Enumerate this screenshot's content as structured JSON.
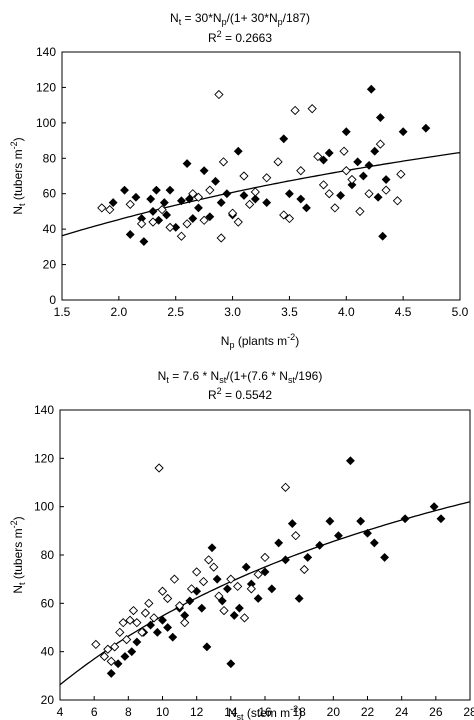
{
  "chart_data": [
    {
      "type": "scatter",
      "title_lines": [
        "N_t = 30*N_p/(1+ 30*N_p/187)",
        "R^2 = 0.2663"
      ],
      "xlabel": "N_p (plants m^-2)",
      "ylabel": "N_t (tubers m^-2)",
      "xlim": [
        1.5,
        5.0
      ],
      "ylim": [
        0,
        140
      ],
      "xticks": [
        "1.5",
        "2.0",
        "2.5",
        "3.0",
        "3.5",
        "4.0",
        "4.5",
        "5.0"
      ],
      "yticks": [
        "0",
        "20",
        "40",
        "60",
        "80",
        "100",
        "120",
        "140"
      ],
      "grid": false,
      "fit": {
        "a": 30,
        "b": 187
      },
      "series": [
        {
          "marker": "filled-diamond",
          "points": [
            [
              1.95,
              55
            ],
            [
              2.05,
              62
            ],
            [
              2.1,
              37
            ],
            [
              2.15,
              58
            ],
            [
              2.2,
              46
            ],
            [
              2.22,
              33
            ],
            [
              2.28,
              57
            ],
            [
              2.3,
              50
            ],
            [
              2.33,
              62
            ],
            [
              2.35,
              45
            ],
            [
              2.4,
              55
            ],
            [
              2.42,
              48
            ],
            [
              2.45,
              62
            ],
            [
              2.5,
              41
            ],
            [
              2.55,
              56
            ],
            [
              2.6,
              77
            ],
            [
              2.62,
              57
            ],
            [
              2.65,
              46
            ],
            [
              2.7,
              52
            ],
            [
              2.75,
              73
            ],
            [
              2.8,
              47
            ],
            [
              2.85,
              67
            ],
            [
              2.9,
              55
            ],
            [
              2.95,
              60
            ],
            [
              3.0,
              48
            ],
            [
              3.05,
              84
            ],
            [
              3.1,
              59
            ],
            [
              3.2,
              57
            ],
            [
              3.3,
              55
            ],
            [
              3.45,
              91
            ],
            [
              3.5,
              60
            ],
            [
              3.6,
              57
            ],
            [
              3.65,
              52
            ],
            [
              3.8,
              79
            ],
            [
              3.85,
              83
            ],
            [
              3.95,
              59
            ],
            [
              4.0,
              95
            ],
            [
              4.05,
              65
            ],
            [
              4.1,
              78
            ],
            [
              4.15,
              70
            ],
            [
              4.2,
              76
            ],
            [
              4.22,
              119
            ],
            [
              4.25,
              84
            ],
            [
              4.28,
              58
            ],
            [
              4.3,
              103
            ],
            [
              4.32,
              36
            ],
            [
              4.35,
              68
            ],
            [
              4.5,
              95
            ],
            [
              4.7,
              97
            ]
          ]
        },
        {
          "marker": "open-diamond",
          "points": [
            [
              1.85,
              52
            ],
            [
              1.92,
              51
            ],
            [
              2.1,
              54
            ],
            [
              2.2,
              43
            ],
            [
              2.3,
              44
            ],
            [
              2.38,
              51
            ],
            [
              2.45,
              41
            ],
            [
              2.55,
              36
            ],
            [
              2.6,
              43
            ],
            [
              2.65,
              60
            ],
            [
              2.7,
              58
            ],
            [
              2.75,
              45
            ],
            [
              2.8,
              62
            ],
            [
              2.88,
              116
            ],
            [
              2.9,
              35
            ],
            [
              2.92,
              78
            ],
            [
              3.0,
              49
            ],
            [
              3.05,
              44
            ],
            [
              3.1,
              70
            ],
            [
              3.15,
              54
            ],
            [
              3.2,
              61
            ],
            [
              3.3,
              69
            ],
            [
              3.4,
              78
            ],
            [
              3.45,
              48
            ],
            [
              3.5,
              46
            ],
            [
              3.55,
              107
            ],
            [
              3.6,
              73
            ],
            [
              3.7,
              108
            ],
            [
              3.75,
              81
            ],
            [
              3.8,
              65
            ],
            [
              3.85,
              60
            ],
            [
              3.9,
              52
            ],
            [
              3.98,
              84
            ],
            [
              4.0,
              73
            ],
            [
              4.05,
              68
            ],
            [
              4.12,
              50
            ],
            [
              4.2,
              60
            ],
            [
              4.3,
              88
            ],
            [
              4.35,
              62
            ],
            [
              4.45,
              56
            ],
            [
              4.48,
              71
            ]
          ]
        }
      ]
    },
    {
      "type": "scatter",
      "title_lines": [
        "N_t = 7.6 * N_st/(1+(7.6 * N_st/196)",
        "R^2 = 0.5542"
      ],
      "xlabel": "N_st (stem m^-2)",
      "ylabel": "N_t (tubers m^-2)",
      "xlim": [
        4,
        28
      ],
      "ylim": [
        20,
        140
      ],
      "xticks": [
        "4",
        "6",
        "8",
        "10",
        "12",
        "14",
        "16",
        "18",
        "20",
        "22",
        "24",
        "26",
        "28"
      ],
      "yticks": [
        "20",
        "40",
        "60",
        "80",
        "100",
        "120",
        "140"
      ],
      "grid": false,
      "fit": {
        "a": 7.6,
        "b": 196
      },
      "series": [
        {
          "marker": "filled-diamond",
          "points": [
            [
              7.0,
              31
            ],
            [
              7.4,
              35
            ],
            [
              7.8,
              38
            ],
            [
              8.2,
              40
            ],
            [
              8.5,
              44
            ],
            [
              8.9,
              48
            ],
            [
              9.3,
              51
            ],
            [
              9.7,
              48
            ],
            [
              10.0,
              53
            ],
            [
              10.3,
              50
            ],
            [
              10.6,
              46
            ],
            [
              11.0,
              58
            ],
            [
              11.3,
              55
            ],
            [
              11.6,
              61
            ],
            [
              12.0,
              65
            ],
            [
              12.3,
              58
            ],
            [
              12.6,
              42
            ],
            [
              12.9,
              83
            ],
            [
              13.2,
              70
            ],
            [
              13.5,
              61
            ],
            [
              13.8,
              66
            ],
            [
              14.0,
              35
            ],
            [
              14.2,
              55
            ],
            [
              14.5,
              58
            ],
            [
              14.9,
              75
            ],
            [
              15.2,
              68
            ],
            [
              15.6,
              62
            ],
            [
              16.0,
              73
            ],
            [
              16.4,
              66
            ],
            [
              16.8,
              85
            ],
            [
              17.2,
              78
            ],
            [
              17.6,
              93
            ],
            [
              18.0,
              62
            ],
            [
              18.5,
              79
            ],
            [
              19.2,
              84
            ],
            [
              19.8,
              94
            ],
            [
              20.3,
              88
            ],
            [
              21.0,
              119
            ],
            [
              21.6,
              94
            ],
            [
              22.0,
              89
            ],
            [
              22.4,
              85
            ],
            [
              23.0,
              79
            ],
            [
              24.2,
              95
            ],
            [
              25.9,
              100
            ],
            [
              26.3,
              95
            ]
          ]
        },
        {
          "marker": "open-diamond",
          "points": [
            [
              6.1,
              43
            ],
            [
              6.6,
              38
            ],
            [
              6.8,
              41
            ],
            [
              7.0,
              36
            ],
            [
              7.2,
              42
            ],
            [
              7.5,
              48
            ],
            [
              7.7,
              52
            ],
            [
              7.9,
              45
            ],
            [
              8.1,
              53
            ],
            [
              8.3,
              57
            ],
            [
              8.5,
              52
            ],
            [
              8.8,
              48
            ],
            [
              9.0,
              56
            ],
            [
              9.2,
              60
            ],
            [
              9.5,
              54
            ],
            [
              9.8,
              116
            ],
            [
              10.0,
              65
            ],
            [
              10.3,
              62
            ],
            [
              10.7,
              70
            ],
            [
              11.0,
              59
            ],
            [
              11.3,
              52
            ],
            [
              11.7,
              66
            ],
            [
              12.0,
              73
            ],
            [
              12.4,
              69
            ],
            [
              12.7,
              78
            ],
            [
              13.0,
              75
            ],
            [
              13.3,
              63
            ],
            [
              13.6,
              57
            ],
            [
              14.0,
              70
            ],
            [
              14.4,
              67
            ],
            [
              14.8,
              54
            ],
            [
              15.2,
              66
            ],
            [
              15.6,
              72
            ],
            [
              16.0,
              79
            ],
            [
              17.2,
              108
            ],
            [
              17.8,
              88
            ],
            [
              18.3,
              74
            ]
          ]
        }
      ]
    }
  ]
}
